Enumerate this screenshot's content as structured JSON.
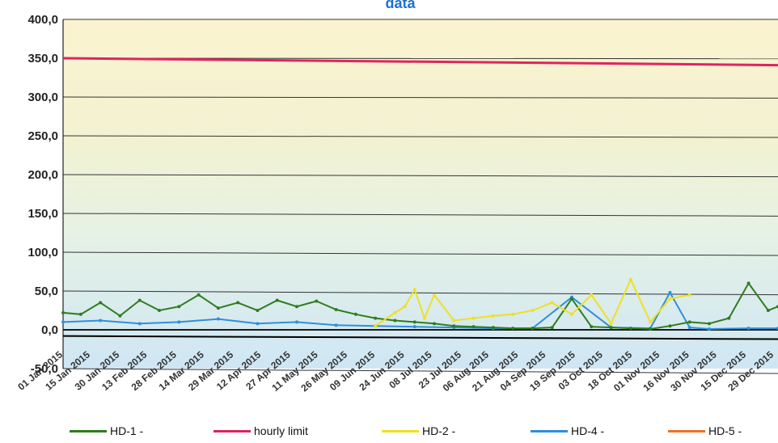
{
  "chart_data": {
    "type": "line",
    "title": "data",
    "xlabel": "",
    "ylabel": "",
    "ylim": [
      -50,
      400
    ],
    "yticks": [
      "400,0",
      "350,0",
      "300,0",
      "250,0",
      "200,0",
      "150,0",
      "100,0",
      "50,0",
      "0,0",
      "-50,0"
    ],
    "xlim": [
      "2015-01-01",
      "2015-12-31"
    ],
    "xtick_labels_major": [
      "01 Jan 2015",
      "30 Jan 2015",
      "28 Feb 2015",
      "29 Mar 2015",
      "27 Apr 2015",
      "26 May 2015",
      "24 Jun 2015",
      "23 Jul 2015",
      "21 Aug 2015",
      "19 Sep 2015",
      "18 Oct 2015",
      "16 Nov 2015",
      "15 Dec 2015"
    ],
    "xtick_labels_minor": [
      "15 Jan 2015",
      "13 Feb 2015",
      "14 Mar 2015",
      "12 Apr 2015",
      "11 May 2015",
      "09 Jun 2015",
      "08 Jul 2015",
      "06 Aug 2015",
      "04 Sep 2015",
      "03 Oct 2015",
      "01 Nov 2015",
      "30 Nov 2015",
      "29 Dec 2015"
    ],
    "grid": true,
    "legend_position": "bottom",
    "series": [
      {
        "name": "HD-1 -",
        "color": "#2e7d1e",
        "x": [
          "2015-01-01",
          "2015-01-10",
          "2015-01-20",
          "2015-01-30",
          "2015-02-09",
          "2015-02-19",
          "2015-03-01",
          "2015-03-11",
          "2015-03-21",
          "2015-03-31",
          "2015-04-10",
          "2015-04-20",
          "2015-04-30",
          "2015-05-10",
          "2015-05-20",
          "2015-05-30",
          "2015-06-09",
          "2015-06-19",
          "2015-06-29",
          "2015-07-09",
          "2015-07-19",
          "2015-07-29",
          "2015-08-08",
          "2015-08-18",
          "2015-08-28",
          "2015-09-07",
          "2015-09-17",
          "2015-09-27",
          "2015-10-07",
          "2015-10-17",
          "2015-10-27",
          "2015-11-06",
          "2015-11-16",
          "2015-11-26",
          "2015-12-06",
          "2015-12-16",
          "2015-12-26",
          "2015-12-31"
        ],
        "values": [
          22,
          20,
          35,
          18,
          38,
          25,
          30,
          45,
          28,
          35,
          25,
          38,
          30,
          37,
          26,
          20,
          15,
          12,
          10,
          8,
          5,
          4,
          3,
          2,
          2,
          3,
          40,
          4,
          3,
          2,
          1,
          5,
          10,
          8,
          15,
          60,
          25,
          30
        ]
      },
      {
        "name": "hourly limit",
        "color": "#e0245e",
        "x": [
          "2015-01-01",
          "2015-12-31"
        ],
        "values": [
          350,
          341
        ]
      },
      {
        "name": "HD-2 -",
        "color": "#f0e020",
        "x": [
          "2015-06-09",
          "2015-06-19",
          "2015-06-24",
          "2015-06-29",
          "2015-07-04",
          "2015-07-09",
          "2015-07-19",
          "2015-07-29",
          "2015-08-08",
          "2015-08-18",
          "2015-08-28",
          "2015-09-07",
          "2015-09-17",
          "2015-09-27",
          "2015-10-07",
          "2015-10-17",
          "2015-10-27",
          "2015-11-06",
          "2015-11-16"
        ],
        "values": [
          5,
          22,
          30,
          52,
          15,
          45,
          12,
          15,
          18,
          20,
          25,
          35,
          20,
          45,
          8,
          65,
          10,
          40,
          45
        ]
      },
      {
        "name": "HD-4 -",
        "color": "#2f8fdc",
        "x": [
          "2015-01-01",
          "2015-01-20",
          "2015-02-09",
          "2015-03-01",
          "2015-03-21",
          "2015-04-10",
          "2015-04-30",
          "2015-05-20",
          "2015-06-09",
          "2015-06-29",
          "2015-07-19",
          "2015-08-08",
          "2015-08-28",
          "2015-09-17",
          "2015-10-07",
          "2015-10-27",
          "2015-11-06",
          "2015-11-16",
          "2015-11-26",
          "2015-12-16",
          "2015-12-31"
        ],
        "values": [
          10,
          12,
          8,
          10,
          14,
          8,
          10,
          6,
          5,
          4,
          3,
          2,
          2,
          42,
          3,
          2,
          48,
          3,
          1,
          2,
          2
        ]
      },
      {
        "name": "HD-5 -",
        "color": "#f07020",
        "x": [],
        "values": []
      }
    ]
  }
}
